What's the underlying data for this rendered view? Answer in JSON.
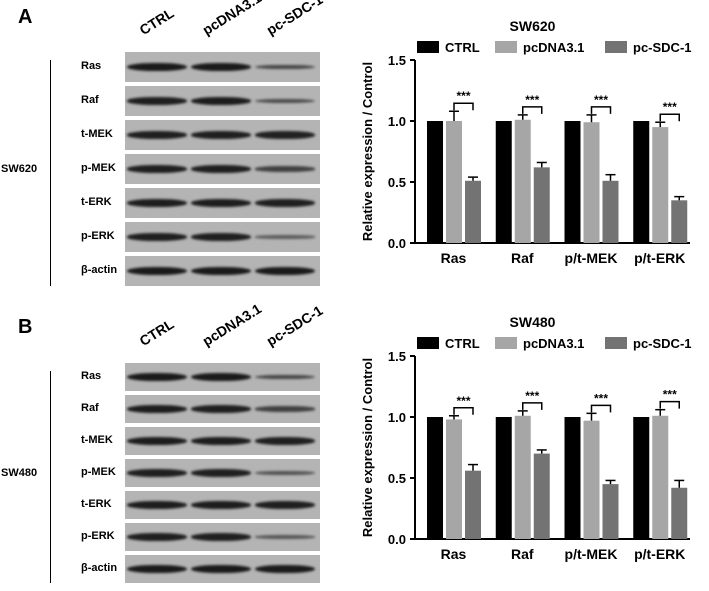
{
  "panels": [
    {
      "letter": "A",
      "cell_line": "SW620",
      "lanes": [
        "CTRL",
        "pcDNA3.1",
        "pc-SDC-1"
      ],
      "proteins": [
        "Ras",
        "Raf",
        "t-MEK",
        "p-MEK",
        "t-ERK",
        "p-ERK",
        "β-actin"
      ],
      "band_intensity": [
        [
          0.95,
          0.95,
          0.55
        ],
        [
          0.9,
          0.92,
          0.5
        ],
        [
          0.9,
          0.9,
          0.88
        ],
        [
          0.9,
          0.9,
          0.6
        ],
        [
          0.92,
          0.92,
          0.9
        ],
        [
          0.9,
          0.9,
          0.35
        ],
        [
          0.95,
          0.95,
          0.95
        ]
      ]
    },
    {
      "letter": "B",
      "cell_line": "SW480",
      "lanes": [
        "CTRL",
        "pcDNA3.1",
        "pc-SDC-1"
      ],
      "proteins": [
        "Ras",
        "Raf",
        "t-MEK",
        "p-MEK",
        "t-ERK",
        "p-ERK",
        "β-actin"
      ],
      "band_intensity": [
        [
          0.95,
          0.95,
          0.55
        ],
        [
          0.92,
          0.9,
          0.6
        ],
        [
          0.92,
          0.92,
          0.9
        ],
        [
          0.9,
          0.9,
          0.45
        ],
        [
          0.92,
          0.92,
          0.9
        ],
        [
          0.9,
          0.9,
          0.4
        ],
        [
          0.95,
          0.95,
          0.95
        ]
      ]
    }
  ],
  "chart_data": [
    {
      "type": "bar",
      "title": "SW620",
      "ylabel": "Relative expression / Control",
      "xlabel": "",
      "ylim": [
        0,
        1.5
      ],
      "yticks": [
        "0.0",
        "0.5",
        "1.0",
        "1.5"
      ],
      "categories": [
        "Ras",
        "Raf",
        "p/t-MEK",
        "p/t-ERK"
      ],
      "series": [
        {
          "name": "CTRL",
          "color": "#000000",
          "values": [
            1.0,
            1.0,
            1.0,
            1.0
          ],
          "errors": [
            0,
            0,
            0,
            0
          ]
        },
        {
          "name": "pcDNA3.1",
          "color": "#a6a6a6",
          "values": [
            1.0,
            1.01,
            0.99,
            0.95
          ],
          "errors": [
            0.08,
            0.04,
            0.06,
            0.04
          ]
        },
        {
          "name": "pc-SDC-1",
          "color": "#737373",
          "values": [
            0.51,
            0.62,
            0.51,
            0.35
          ],
          "errors": [
            0.03,
            0.04,
            0.05,
            0.03
          ]
        }
      ],
      "significance": [
        "***",
        "***",
        "***",
        "***"
      ],
      "legend_position": "top",
      "grid": false
    },
    {
      "type": "bar",
      "title": "SW480",
      "ylabel": "Relative expression / Control",
      "xlabel": "",
      "ylim": [
        0,
        1.5
      ],
      "yticks": [
        "0.0",
        "0.5",
        "1.0",
        "1.5"
      ],
      "categories": [
        "Ras",
        "Raf",
        "p/t-MEK",
        "p/t-ERK"
      ],
      "series": [
        {
          "name": "CTRL",
          "color": "#000000",
          "values": [
            1.0,
            1.0,
            1.0,
            1.0
          ],
          "errors": [
            0,
            0,
            0,
            0
          ]
        },
        {
          "name": "pcDNA3.1",
          "color": "#a6a6a6",
          "values": [
            0.98,
            1.01,
            0.97,
            1.01
          ],
          "errors": [
            0.03,
            0.04,
            0.06,
            0.05
          ]
        },
        {
          "name": "pc-SDC-1",
          "color": "#737373",
          "values": [
            0.56,
            0.7,
            0.45,
            0.42
          ],
          "errors": [
            0.05,
            0.03,
            0.03,
            0.06
          ]
        }
      ],
      "significance": [
        "***",
        "***",
        "***",
        "***"
      ],
      "legend_position": "top",
      "grid": false
    }
  ]
}
